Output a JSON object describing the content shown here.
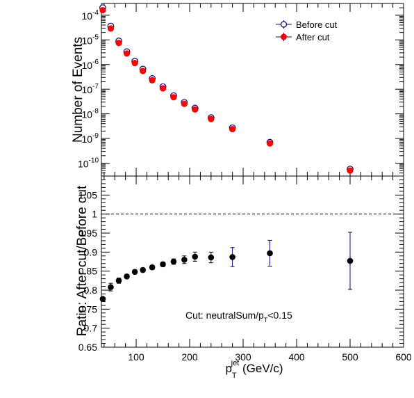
{
  "chart_data": [
    {
      "type": "scatter",
      "panel": "top",
      "ylabel": "Number of Events",
      "yscale": "log",
      "ylim": [
        3e-11,
        0.0003
      ],
      "xlim": [
        35,
        600
      ],
      "ytick_labels": [
        {
          "base": "10",
          "exp": "-4",
          "value": 0.0001
        },
        {
          "base": "10",
          "exp": "-5",
          "value": 1e-05
        },
        {
          "base": "10",
          "exp": "-6",
          "value": 1e-06
        },
        {
          "base": "10",
          "exp": "-7",
          "value": 1e-07
        },
        {
          "base": "10",
          "exp": "-8",
          "value": 1e-08
        },
        {
          "base": "10",
          "exp": "-9",
          "value": 1e-09
        },
        {
          "base": "10",
          "exp": "-10",
          "value": 1e-10
        }
      ],
      "legend_position": "top-right",
      "series": [
        {
          "name": "Before cut",
          "marker": "open-circle",
          "color": "#000080",
          "x": [
            37.5,
            52.5,
            67.5,
            82.5,
            97.5,
            112.5,
            130,
            150,
            170,
            190,
            210,
            240,
            280,
            350,
            500
          ],
          "y": [
            0.0002,
            3.6e-05,
            9e-06,
            3.3e-06,
            1.35e-06,
            6.5e-07,
            2.7e-07,
            1.25e-07,
            5.4e-08,
            2.9e-08,
            1.7e-08,
            7e-09,
            2.7e-09,
            7e-10,
            5.7e-11
          ]
        },
        {
          "name": "After cut",
          "marker": "filled-circle",
          "color": "#ff0000",
          "x": [
            37.5,
            52.5,
            67.5,
            82.5,
            97.5,
            112.5,
            130,
            150,
            170,
            190,
            210,
            240,
            280,
            350,
            500
          ],
          "y": [
            0.00016,
            2.9e-05,
            7.5e-06,
            2.8e-06,
            1.15e-06,
            5.5e-07,
            2.3e-07,
            1.08e-07,
            4.7e-08,
            2.55e-08,
            1.5e-08,
            6.2e-09,
            2.4e-09,
            6.3e-10,
            5e-11
          ]
        }
      ]
    },
    {
      "type": "scatter",
      "panel": "bottom",
      "xlabel": {
        "main": "p",
        "sub": "T",
        "sup": "jet",
        "unit": " (GeV/c)"
      },
      "ylabel": "Ratio: After cut/Before cut",
      "xlim": [
        35,
        600
      ],
      "ylim": [
        0.65,
        1.1
      ],
      "xtick_labels": [
        "100",
        "200",
        "300",
        "400",
        "500",
        "600"
      ],
      "ytick_labels": [
        "0.65",
        "0.7",
        "0.75",
        "0.8",
        "0.85",
        "0.9",
        "0.95",
        "1",
        "1.05"
      ],
      "reference_line": 1.0,
      "annotation": {
        "text": "Cut: neutralSum/p",
        "sub": "T",
        "suffix": "<0.15"
      },
      "series": [
        {
          "marker": "filled-circle",
          "color": "#000000",
          "error_color": "#000080",
          "x": [
            37.5,
            52.5,
            67.5,
            82.5,
            97.5,
            112.5,
            130,
            150,
            170,
            190,
            210,
            240,
            280,
            350,
            500
          ],
          "y": [
            0.777,
            0.808,
            0.825,
            0.836,
            0.848,
            0.853,
            0.86,
            0.868,
            0.875,
            0.88,
            0.888,
            0.886,
            0.887,
            0.897,
            0.877
          ],
          "yerr": [
            0.004,
            0.01,
            0.007,
            0.005,
            0.005,
            0.005,
            0.005,
            0.006,
            0.007,
            0.01,
            0.012,
            0.014,
            0.025,
            0.034,
            0.075
          ]
        }
      ]
    }
  ]
}
